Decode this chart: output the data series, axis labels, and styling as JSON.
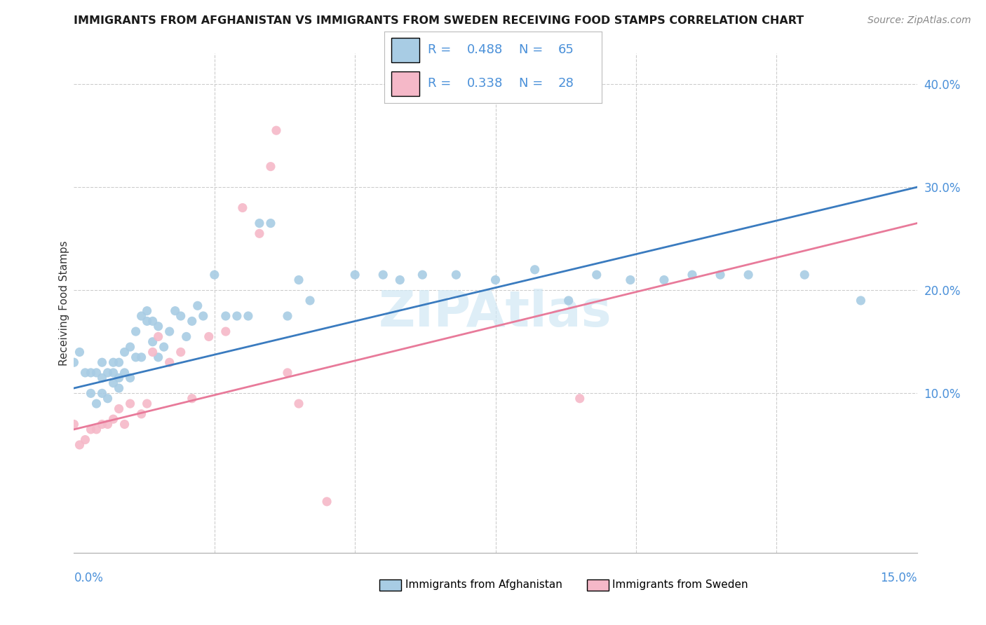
{
  "title": "IMMIGRANTS FROM AFGHANISTAN VS IMMIGRANTS FROM SWEDEN RECEIVING FOOD STAMPS CORRELATION CHART",
  "source": "Source: ZipAtlas.com",
  "ylabel": "Receiving Food Stamps",
  "right_yticks": [
    0.1,
    0.2,
    0.3,
    0.4
  ],
  "right_yticklabels": [
    "10.0%",
    "20.0%",
    "30.0%",
    "40.0%"
  ],
  "afghanistan_color": "#a8cce4",
  "sweden_color": "#f5b8c8",
  "afghanistan_line_color": "#3a7bbf",
  "sweden_line_color": "#e87a9a",
  "legend_text_color": "#4a90d9",
  "watermark_color": "#d0e8f5",
  "xlim": [
    0.0,
    0.15
  ],
  "ylim": [
    -0.055,
    0.43
  ],
  "afghanistan_points_x": [
    0.0,
    0.001,
    0.002,
    0.003,
    0.003,
    0.004,
    0.004,
    0.005,
    0.005,
    0.005,
    0.006,
    0.006,
    0.007,
    0.007,
    0.007,
    0.008,
    0.008,
    0.008,
    0.009,
    0.009,
    0.01,
    0.01,
    0.011,
    0.011,
    0.012,
    0.012,
    0.013,
    0.013,
    0.014,
    0.014,
    0.015,
    0.015,
    0.016,
    0.017,
    0.018,
    0.019,
    0.02,
    0.021,
    0.022,
    0.023,
    0.025,
    0.027,
    0.029,
    0.031,
    0.033,
    0.035,
    0.038,
    0.04,
    0.042,
    0.05,
    0.055,
    0.058,
    0.062,
    0.068,
    0.075,
    0.082,
    0.088,
    0.093,
    0.099,
    0.105,
    0.11,
    0.115,
    0.12,
    0.13,
    0.14
  ],
  "afghanistan_points_y": [
    0.13,
    0.14,
    0.12,
    0.1,
    0.12,
    0.09,
    0.12,
    0.115,
    0.13,
    0.1,
    0.12,
    0.095,
    0.12,
    0.13,
    0.11,
    0.115,
    0.13,
    0.105,
    0.12,
    0.14,
    0.145,
    0.115,
    0.16,
    0.135,
    0.135,
    0.175,
    0.17,
    0.18,
    0.15,
    0.17,
    0.165,
    0.135,
    0.145,
    0.16,
    0.18,
    0.175,
    0.155,
    0.17,
    0.185,
    0.175,
    0.215,
    0.175,
    0.175,
    0.175,
    0.265,
    0.265,
    0.175,
    0.21,
    0.19,
    0.215,
    0.215,
    0.21,
    0.215,
    0.215,
    0.21,
    0.22,
    0.19,
    0.215,
    0.21,
    0.21,
    0.215,
    0.215,
    0.215,
    0.215,
    0.19
  ],
  "sweden_points_x": [
    0.0,
    0.001,
    0.002,
    0.003,
    0.004,
    0.005,
    0.006,
    0.007,
    0.008,
    0.009,
    0.01,
    0.012,
    0.013,
    0.014,
    0.015,
    0.017,
    0.019,
    0.021,
    0.024,
    0.027,
    0.03,
    0.033,
    0.035,
    0.036,
    0.038,
    0.04,
    0.045,
    0.09
  ],
  "sweden_points_y": [
    0.07,
    0.05,
    0.055,
    0.065,
    0.065,
    0.07,
    0.07,
    0.075,
    0.085,
    0.07,
    0.09,
    0.08,
    0.09,
    0.14,
    0.155,
    0.13,
    0.14,
    0.095,
    0.155,
    0.16,
    0.28,
    0.255,
    0.32,
    0.355,
    0.12,
    0.09,
    -0.005,
    0.095
  ],
  "afghanistan_line": {
    "x0": 0.0,
    "y0": 0.105,
    "x1": 0.15,
    "y1": 0.3
  },
  "sweden_line": {
    "x0": 0.0,
    "y0": 0.065,
    "x1": 0.15,
    "y1": 0.265
  },
  "legend_r1": "0.488",
  "legend_n1": "65",
  "legend_r2": "0.338",
  "legend_n2": "28",
  "grid_color": "#cccccc",
  "grid_yticks": [
    0.1,
    0.2,
    0.3,
    0.4
  ],
  "grid_xticks": [
    0.025,
    0.05,
    0.075,
    0.1,
    0.125
  ]
}
